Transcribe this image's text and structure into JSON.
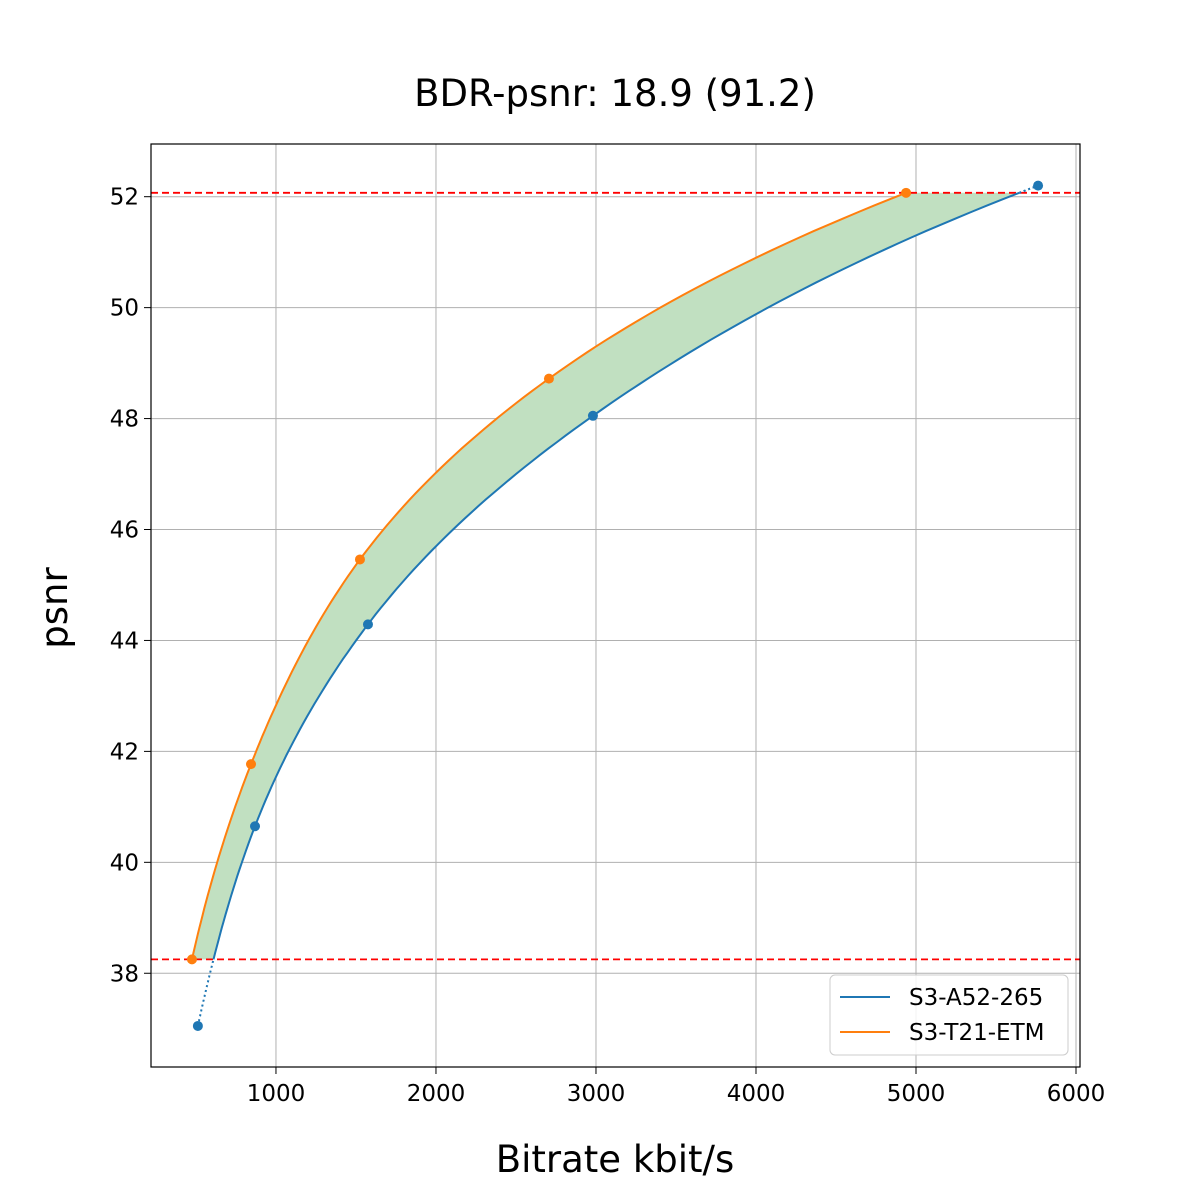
{
  "chart_data": {
    "type": "line",
    "title": "BDR-psnr: 18.9 (91.2)",
    "xlabel": "Bitrate kbit/s",
    "ylabel": "psnr",
    "xlim": [
      219,
      6025
    ],
    "ylim": [
      36.31,
      52.95
    ],
    "xticks": [
      1000,
      2000,
      3000,
      4000,
      5000,
      6000
    ],
    "yticks": [
      38,
      40,
      42,
      44,
      46,
      48,
      50,
      52
    ],
    "grid": true,
    "legend_position": "bottom-right",
    "series": [
      {
        "name": "S3-A52-265",
        "color": "#1f77b4",
        "x": [
          512,
          869,
          1575,
          2981,
          5763
        ],
        "y": [
          37.05,
          40.65,
          44.29,
          48.05,
          52.2
        ]
      },
      {
        "name": "S3-T21-ETM",
        "color": "#ff7f0e",
        "x": [
          475,
          844,
          1525,
          2706,
          4938
        ],
        "y": [
          38.25,
          41.77,
          45.46,
          48.72,
          52.07
        ]
      }
    ],
    "reference_lines": {
      "y": [
        38.25,
        52.07
      ],
      "color": "#ff0000",
      "style": "dashed"
    },
    "fill_between": {
      "color": "#c1e0c1",
      "y_range": [
        38.25,
        52.07
      ]
    }
  }
}
